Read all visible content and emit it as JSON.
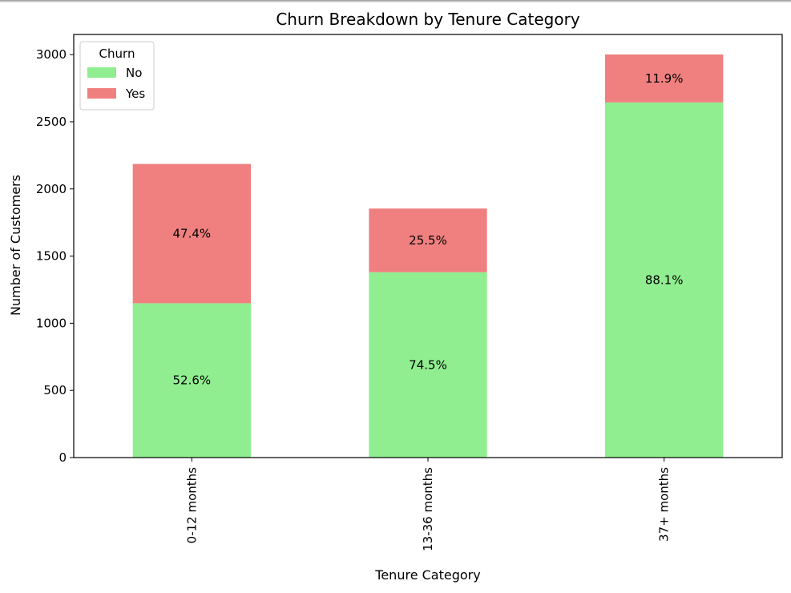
{
  "chart_data": {
    "type": "bar",
    "stacked": true,
    "title": "Churn Breakdown by Tenure Category",
    "xlabel": "Tenure Category",
    "ylabel": "Number of Customers",
    "categories": [
      "0-12 months",
      "13-36 months",
      "37+ months"
    ],
    "series": [
      {
        "name": "No",
        "values": [
          1149,
          1380,
          2644
        ],
        "labels": [
          "52.6%",
          "74.5%",
          "88.1%"
        ],
        "color": "#90ee90"
      },
      {
        "name": "Yes",
        "values": [
          1037,
          474,
          357
        ],
        "labels": [
          "47.4%",
          "25.5%",
          "11.9%"
        ],
        "color": "#f08080"
      }
    ],
    "ylim": [
      0,
      3150
    ],
    "yticks": [
      0,
      500,
      1000,
      1500,
      2000,
      2500,
      3000
    ],
    "grid": false,
    "legend": {
      "title": "Churn",
      "position": "top-left"
    }
  }
}
